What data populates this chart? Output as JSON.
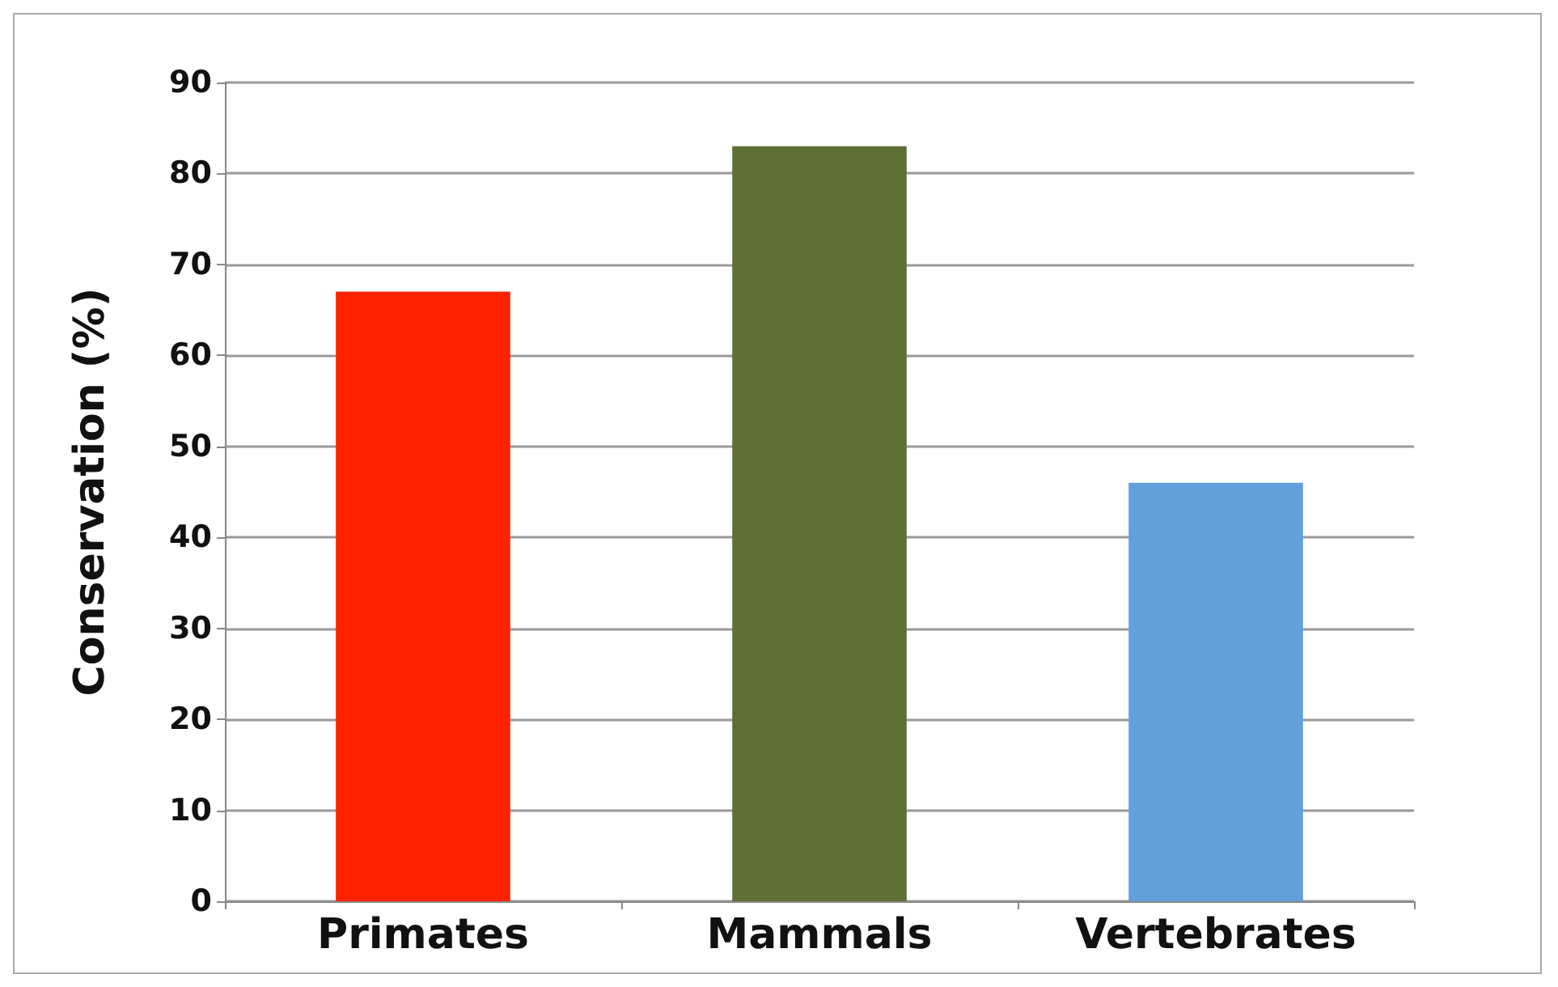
{
  "chart_data": {
    "type": "bar",
    "ylabel": "Conservation (%)",
    "categories": [
      "Primates",
      "Mammals",
      "Vertebrates"
    ],
    "values": [
      67,
      83,
      46
    ],
    "colors": [
      "#ff2200",
      "#5e7035",
      "#62a0dc"
    ],
    "ylim": [
      0,
      90
    ],
    "yticks": [
      0,
      10,
      20,
      30,
      40,
      50,
      60,
      70,
      80,
      90
    ],
    "grid": "y"
  }
}
